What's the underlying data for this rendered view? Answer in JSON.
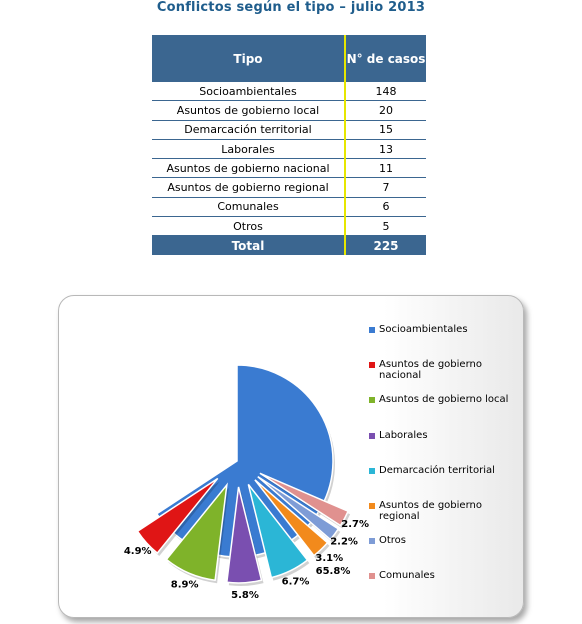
{
  "page": {
    "title": "Conflictos según el tipo – julio 2013"
  },
  "table": {
    "headers": [
      "Tipo",
      "N° de casos"
    ],
    "rows": [
      {
        "tipo": "Socioambientales",
        "casos": "148"
      },
      {
        "tipo": "Asuntos de gobierno local",
        "casos": "20"
      },
      {
        "tipo": "Demarcación territorial",
        "casos": "15"
      },
      {
        "tipo": "Laborales",
        "casos": "13"
      },
      {
        "tipo": "Asuntos de gobierno nacional",
        "casos": "11"
      },
      {
        "tipo": "Asuntos de gobierno regional",
        "casos": "7"
      },
      {
        "tipo": "Comunales",
        "casos": "6"
      },
      {
        "tipo": "Otros",
        "casos": "5"
      }
    ],
    "total": {
      "label": "Total",
      "value": "225"
    },
    "colors": {
      "header": "#3b6690",
      "divider": "#e6e600"
    }
  },
  "chart_data": {
    "type": "pie",
    "title": "",
    "exploded": true,
    "slices": [
      {
        "label": "Socioambientales",
        "value": 65.8,
        "data_label": "65.8%",
        "color": "#3a7bd1"
      },
      {
        "label": "Asuntos de gobierno nacional",
        "value": 4.9,
        "data_label": "4.9%",
        "color": "#e01515"
      },
      {
        "label": "Asuntos de gobierno local",
        "value": 8.9,
        "data_label": "8.9%",
        "color": "#7fb32a"
      },
      {
        "label": "Laborales",
        "value": 5.8,
        "data_label": "5.8%",
        "color": "#7a4fb0"
      },
      {
        "label": "Demarcación territorial",
        "value": 6.7,
        "data_label": "6.7%",
        "color": "#2bb6d6"
      },
      {
        "label": "Asuntos de gobierno regional",
        "value": 3.1,
        "data_label": "3.1%",
        "color": "#f28a1c"
      },
      {
        "label": "Otros",
        "value": 2.2,
        "data_label": "2.2%",
        "color": "#7e9cd6"
      },
      {
        "label": "Comunales",
        "value": 2.7,
        "data_label": "2.7%",
        "color": "#e0918f"
      }
    ],
    "legend_position": "right"
  }
}
